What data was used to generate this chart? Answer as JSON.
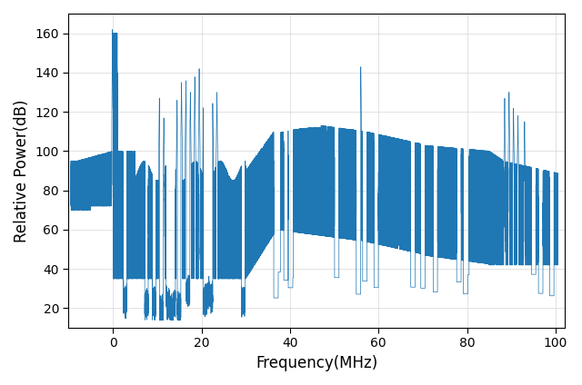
{
  "xlabel": "Frequency(MHz)",
  "ylabel": "Relative Power(dB)",
  "xlim": [
    -10,
    102
  ],
  "ylim": [
    10,
    170
  ],
  "xticks": [
    0,
    20,
    40,
    60,
    80,
    100
  ],
  "yticks": [
    20,
    40,
    60,
    80,
    100,
    120,
    140,
    160
  ],
  "line_color": "#1f77b4",
  "line_width": 0.5,
  "figsize": [
    6.4,
    4.24
  ],
  "dpi": 100,
  "seed": 42,
  "freq_start": -9.5,
  "freq_end": 100.5,
  "n_points": 60000
}
